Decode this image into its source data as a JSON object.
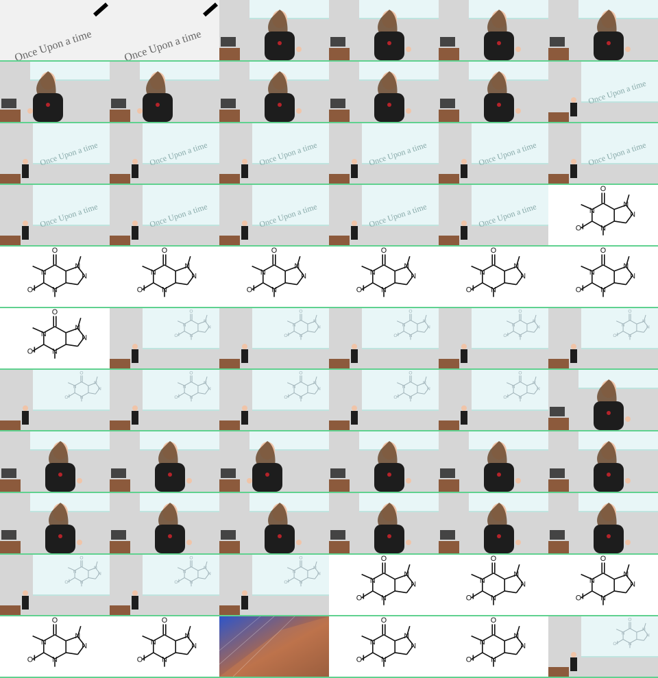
{
  "grid": {
    "columns": 6,
    "rows": 11
  },
  "handwriting_text": "Once Upon a time",
  "molecule_labels": [
    "O",
    "N",
    "N",
    "N",
    "N",
    "O"
  ],
  "colors": {
    "separator": "#5fd18f",
    "screen": "#e8f6f7",
    "wall": "#d6d6d6",
    "shirt": "#1d1d1d",
    "hair": "#6b4a2f",
    "skin": "#f0c4a8",
    "desk": "#8c5a3c"
  },
  "frames": [
    {
      "kind": "handwriting"
    },
    {
      "kind": "handwriting"
    },
    {
      "kind": "speaker"
    },
    {
      "kind": "speaker"
    },
    {
      "kind": "speaker"
    },
    {
      "kind": "speaker"
    },
    {
      "kind": "speaker-left"
    },
    {
      "kind": "speaker-left"
    },
    {
      "kind": "speaker"
    },
    {
      "kind": "speaker"
    },
    {
      "kind": "speaker"
    },
    {
      "kind": "wide-handwriting"
    },
    {
      "kind": "wide-handwriting"
    },
    {
      "kind": "wide-handwriting"
    },
    {
      "kind": "wide-handwriting"
    },
    {
      "kind": "wide-handwriting"
    },
    {
      "kind": "wide-handwriting"
    },
    {
      "kind": "wide-handwriting"
    },
    {
      "kind": "wide-handwriting"
    },
    {
      "kind": "wide-handwriting"
    },
    {
      "kind": "wide-handwriting"
    },
    {
      "kind": "wide-handwriting"
    },
    {
      "kind": "wide-handwriting"
    },
    {
      "kind": "molecule"
    },
    {
      "kind": "molecule"
    },
    {
      "kind": "molecule"
    },
    {
      "kind": "molecule"
    },
    {
      "kind": "molecule"
    },
    {
      "kind": "molecule"
    },
    {
      "kind": "molecule"
    },
    {
      "kind": "molecule"
    },
    {
      "kind": "wide-molecule"
    },
    {
      "kind": "wide-molecule"
    },
    {
      "kind": "wide-molecule"
    },
    {
      "kind": "wide-molecule"
    },
    {
      "kind": "wide-molecule"
    },
    {
      "kind": "wide-molecule"
    },
    {
      "kind": "wide-molecule"
    },
    {
      "kind": "wide-molecule"
    },
    {
      "kind": "wide-molecule"
    },
    {
      "kind": "wide-molecule"
    },
    {
      "kind": "speaker"
    },
    {
      "kind": "speaker"
    },
    {
      "kind": "speaker"
    },
    {
      "kind": "speaker-left"
    },
    {
      "kind": "speaker"
    },
    {
      "kind": "speaker"
    },
    {
      "kind": "speaker"
    },
    {
      "kind": "speaker"
    },
    {
      "kind": "speaker"
    },
    {
      "kind": "speaker"
    },
    {
      "kind": "speaker"
    },
    {
      "kind": "speaker"
    },
    {
      "kind": "speaker"
    },
    {
      "kind": "wide-molecule"
    },
    {
      "kind": "wide-molecule"
    },
    {
      "kind": "wide-molecule"
    },
    {
      "kind": "molecule"
    },
    {
      "kind": "molecule"
    },
    {
      "kind": "molecule"
    },
    {
      "kind": "molecule"
    },
    {
      "kind": "molecule"
    },
    {
      "kind": "architecture"
    },
    {
      "kind": "molecule"
    },
    {
      "kind": "molecule"
    },
    {
      "kind": "wide-molecule"
    }
  ]
}
